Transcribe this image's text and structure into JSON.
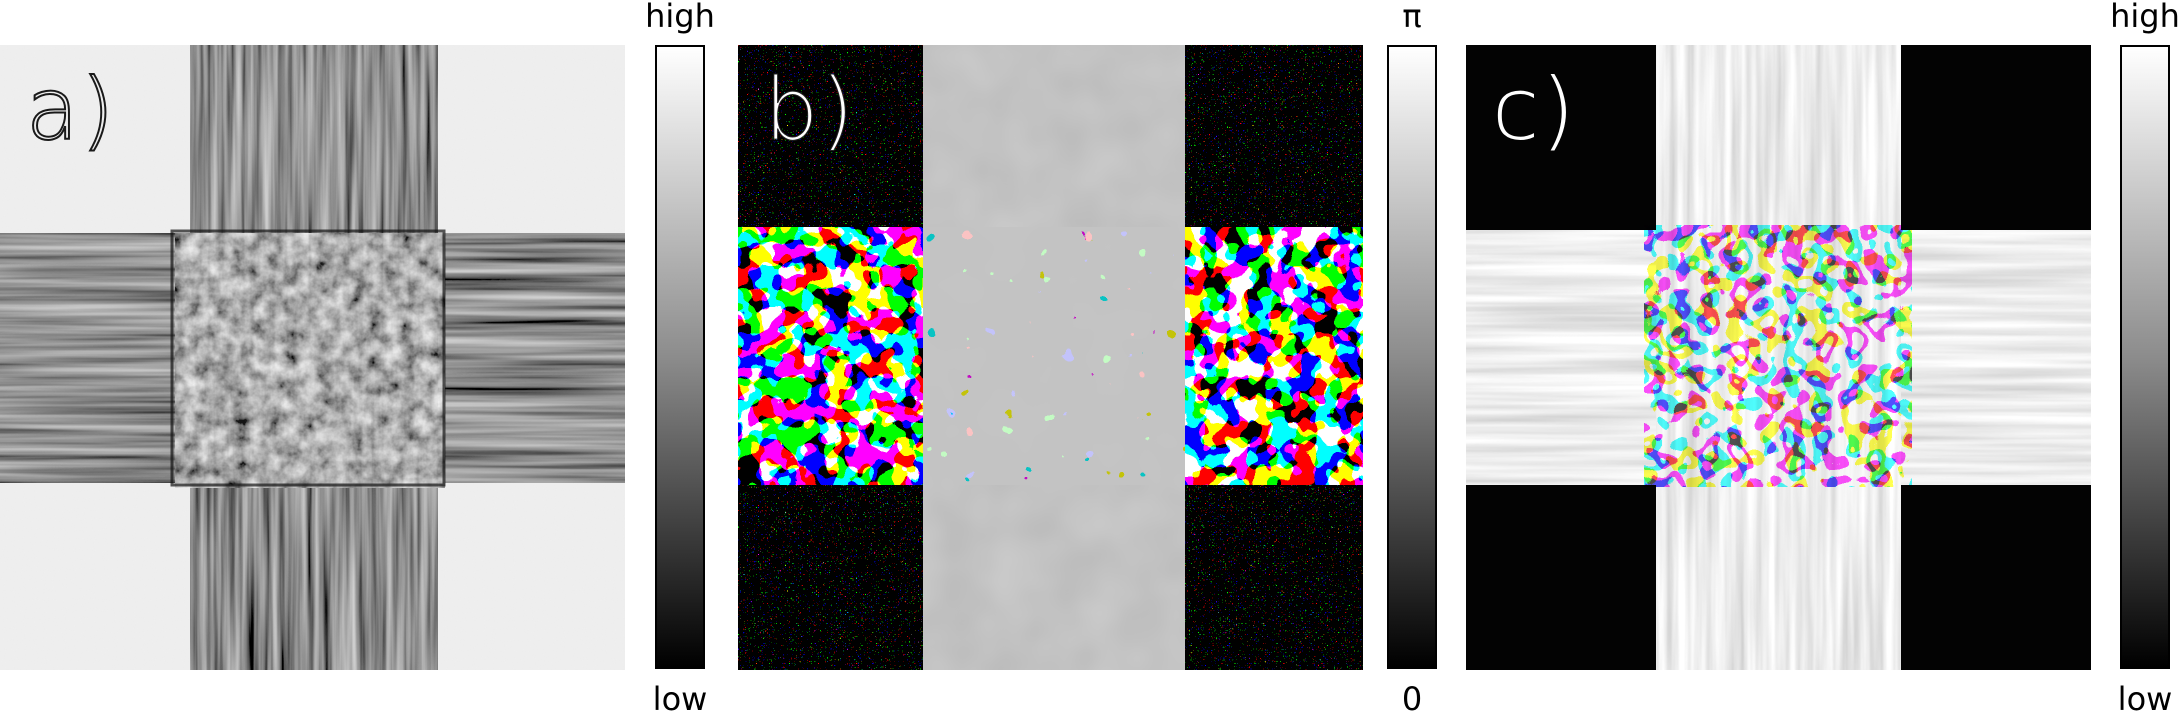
{
  "panels": [
    {
      "label": "a)"
    },
    {
      "label": "b)"
    },
    {
      "label": "c)"
    }
  ],
  "colorbars": [
    {
      "top": "high",
      "bottom": "low"
    },
    {
      "top": "π",
      "bottom": "0"
    },
    {
      "top": "high",
      "bottom": "low"
    }
  ]
}
